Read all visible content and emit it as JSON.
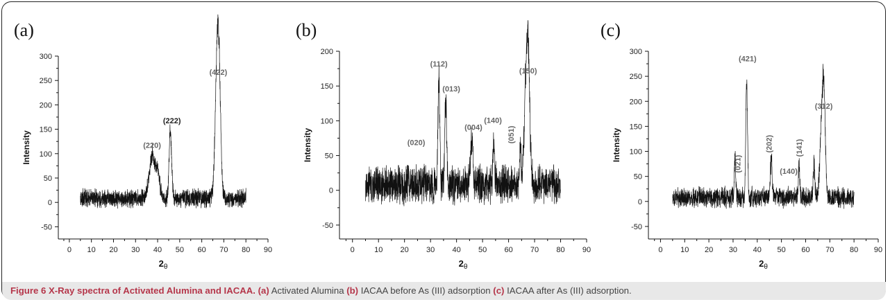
{
  "caption": {
    "lead": "Figure 6 X-Ray spectra of Activated Alumina and IACAA.",
    "a_tag": "(a)",
    "a_text": " Activated Alumina ",
    "b_tag": "(b)",
    "b_text": " IACAA before As (III) adsorption ",
    "c_tag": "(c)",
    "c_text": " IACAA after As (III) adsorption."
  },
  "chart_data": [
    {
      "type": "line",
      "panel_label": "(a)",
      "xlabel": "2θ",
      "ylabel": "Intensity",
      "xlim": [
        -5,
        90
      ],
      "ylim": [
        -75,
        300
      ],
      "xticks": [
        0,
        10,
        20,
        30,
        40,
        50,
        60,
        70,
        80,
        90
      ],
      "yticks": [
        -50,
        0,
        50,
        100,
        150,
        200,
        250,
        300
      ],
      "noise_amplitude": 22,
      "peaks": [
        {
          "x": 37.6,
          "y": 102,
          "w": 1.4
        },
        {
          "x": 40.2,
          "y": 60,
          "w": 0.9
        },
        {
          "x": 45.8,
          "y": 153,
          "w": 0.6
        },
        {
          "x": 66.9,
          "y": 252,
          "w": 0.9
        },
        {
          "x": 67.8,
          "y": 220,
          "w": 0.8
        }
      ],
      "annotations": [
        {
          "text": "(220)",
          "x": 37.5,
          "y": 112,
          "rotate": false
        },
        {
          "text": "(222)",
          "x": 46.5,
          "y": 162,
          "rotate": false,
          "dark": true
        },
        {
          "text": "(422)",
          "x": 67.5,
          "y": 262,
          "rotate": false
        }
      ]
    },
    {
      "type": "line",
      "panel_label": "(b)",
      "xlabel": "2θ",
      "ylabel": "Intensity",
      "xlim": [
        -5,
        90
      ],
      "ylim": [
        -70,
        200
      ],
      "xticks": [
        0,
        10,
        20,
        30,
        40,
        50,
        60,
        70,
        80,
        90
      ],
      "yticks": [
        -50,
        0,
        50,
        100,
        150,
        200
      ],
      "noise_amplitude": 32,
      "peaks": [
        {
          "x": 33.2,
          "y": 172,
          "w": 0.35
        },
        {
          "x": 35.8,
          "y": 140,
          "w": 0.35
        },
        {
          "x": 45.8,
          "y": 80,
          "w": 0.45
        },
        {
          "x": 54.3,
          "y": 75,
          "w": 0.35
        },
        {
          "x": 64.5,
          "y": 70,
          "w": 0.3
        },
        {
          "x": 66.8,
          "y": 160,
          "w": 0.8
        },
        {
          "x": 67.6,
          "y": 140,
          "w": 0.6
        }
      ],
      "annotations": [
        {
          "text": "(020)",
          "x": 24.5,
          "y": 65,
          "rotate": false
        },
        {
          "text": "(112)",
          "x": 33.2,
          "y": 178,
          "rotate": false
        },
        {
          "text": "(013)",
          "x": 38,
          "y": 142,
          "rotate": false
        },
        {
          "text": "(004)",
          "x": 46.5,
          "y": 87,
          "rotate": false
        },
        {
          "text": "(140)",
          "x": 54,
          "y": 97,
          "rotate": false
        },
        {
          "text": "(051)",
          "x": 62,
          "y": 80,
          "rotate": true
        },
        {
          "text": "(150)",
          "x": 67.5,
          "y": 168,
          "rotate": false
        }
      ]
    },
    {
      "type": "line",
      "panel_label": "(c)",
      "xlabel": "2θ",
      "ylabel": "Intensity",
      "xlim": [
        -5,
        90
      ],
      "ylim": [
        -75,
        300
      ],
      "xticks": [
        0,
        10,
        20,
        30,
        40,
        50,
        60,
        70,
        80,
        90
      ],
      "yticks": [
        -50,
        0,
        50,
        100,
        150,
        200,
        250,
        300
      ],
      "noise_amplitude": 24,
      "peaks": [
        {
          "x": 30.8,
          "y": 95,
          "w": 0.3
        },
        {
          "x": 35.6,
          "y": 270,
          "w": 0.35
        },
        {
          "x": 45.8,
          "y": 92,
          "w": 0.4
        },
        {
          "x": 57.3,
          "y": 80,
          "w": 0.3
        },
        {
          "x": 63.5,
          "y": 90,
          "w": 0.3
        },
        {
          "x": 66.8,
          "y": 175,
          "w": 0.8
        },
        {
          "x": 67.6,
          "y": 155,
          "w": 0.6
        }
      ],
      "annotations": [
        {
          "text": "(021)",
          "x": 33,
          "y": 75,
          "rotate": true
        },
        {
          "text": "(421)",
          "x": 36,
          "y": 280,
          "rotate": false
        },
        {
          "text": "(202)",
          "x": 46,
          "y": 115,
          "rotate": true
        },
        {
          "text": "(140)",
          "x": 53,
          "y": 55,
          "rotate": false
        },
        {
          "text": "(141)",
          "x": 58.5,
          "y": 107,
          "rotate": true
        },
        {
          "text": "(312)",
          "x": 67.5,
          "y": 185,
          "rotate": false
        }
      ]
    }
  ]
}
